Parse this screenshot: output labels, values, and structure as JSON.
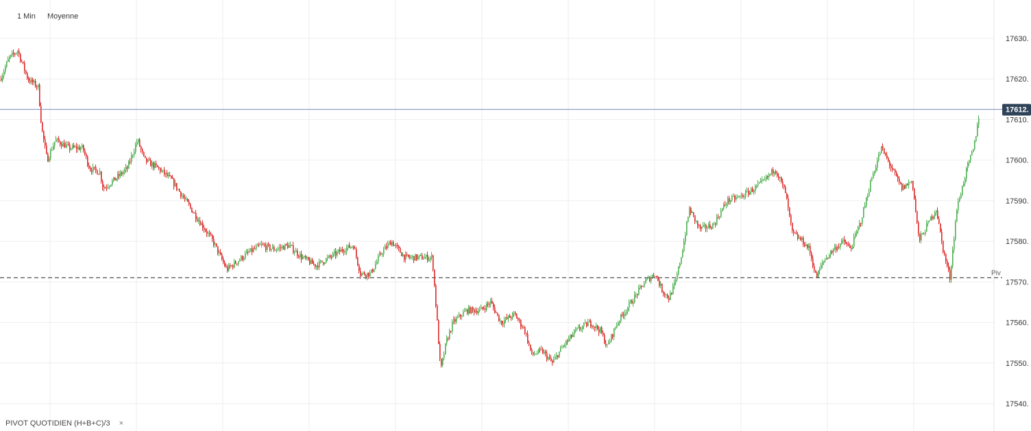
{
  "toolbar": {
    "interval_label": "1 Min",
    "chart_type_label": "Moyenne"
  },
  "indicator": {
    "label": "PIVOT  QUOTIDIEN  (H+B+C)/3",
    "close_glyph": "×"
  },
  "colors": {
    "up": "#4caf50",
    "down": "#e02424",
    "grid": "#eeeeee",
    "axis": "#333333",
    "price_line": "#7b8bb3",
    "price_tag": "#2f4358",
    "pivot_line": "#555555"
  },
  "chart_data": {
    "type": "candlestick",
    "interval": "1 Min",
    "ylim": [
      17535,
      17637
    ],
    "y_ticks": [
      17540,
      17550,
      17560,
      17570,
      17580,
      17590,
      17600,
      17610,
      17620,
      17630
    ],
    "y_tick_labels": [
      "17540.",
      "17550.",
      "17560.",
      "17570.",
      "17580.",
      "17590.",
      "17600.",
      "17610.",
      "17620.",
      "17630."
    ],
    "grid": true,
    "current_price": {
      "value": 17612.5,
      "label": "17612."
    },
    "pivot": {
      "value": 17571.0,
      "label": "Piv"
    },
    "close_path": [
      [
        0,
        17620
      ],
      [
        12,
        17625
      ],
      [
        25,
        17627
      ],
      [
        40,
        17620
      ],
      [
        55,
        17618
      ],
      [
        60,
        17608
      ],
      [
        68,
        17600
      ],
      [
        80,
        17605
      ],
      [
        100,
        17603
      ],
      [
        120,
        17603
      ],
      [
        130,
        17598
      ],
      [
        145,
        17597
      ],
      [
        150,
        17593
      ],
      [
        165,
        17595
      ],
      [
        185,
        17598
      ],
      [
        200,
        17605
      ],
      [
        210,
        17600
      ],
      [
        230,
        17598
      ],
      [
        250,
        17595
      ],
      [
        270,
        17590
      ],
      [
        290,
        17585
      ],
      [
        310,
        17580
      ],
      [
        330,
        17573
      ],
      [
        345,
        17575
      ],
      [
        360,
        17577
      ],
      [
        380,
        17579
      ],
      [
        400,
        17578
      ],
      [
        420,
        17579
      ],
      [
        440,
        17576
      ],
      [
        460,
        17574
      ],
      [
        480,
        17576
      ],
      [
        500,
        17578
      ],
      [
        515,
        17579
      ],
      [
        525,
        17572
      ],
      [
        540,
        17572
      ],
      [
        555,
        17577
      ],
      [
        570,
        17580
      ],
      [
        590,
        17576
      ],
      [
        610,
        17576
      ],
      [
        630,
        17576
      ],
      [
        637,
        17560
      ],
      [
        642,
        17548
      ],
      [
        650,
        17555
      ],
      [
        660,
        17560
      ],
      [
        680,
        17563
      ],
      [
        700,
        17563
      ],
      [
        715,
        17565
      ],
      [
        730,
        17560
      ],
      [
        750,
        17562
      ],
      [
        765,
        17558
      ],
      [
        775,
        17552
      ],
      [
        790,
        17553
      ],
      [
        805,
        17550
      ],
      [
        820,
        17554
      ],
      [
        840,
        17558
      ],
      [
        860,
        17560
      ],
      [
        875,
        17558
      ],
      [
        885,
        17554
      ],
      [
        900,
        17560
      ],
      [
        920,
        17565
      ],
      [
        940,
        17570
      ],
      [
        955,
        17572
      ],
      [
        965,
        17568
      ],
      [
        975,
        17566
      ],
      [
        985,
        17570
      ],
      [
        995,
        17578
      ],
      [
        1005,
        17588
      ],
      [
        1020,
        17583
      ],
      [
        1040,
        17584
      ],
      [
        1060,
        17590
      ],
      [
        1080,
        17591
      ],
      [
        1100,
        17593
      ],
      [
        1115,
        17595
      ],
      [
        1130,
        17598
      ],
      [
        1145,
        17592
      ],
      [
        1155,
        17582
      ],
      [
        1170,
        17580
      ],
      [
        1180,
        17578
      ],
      [
        1190,
        17571
      ],
      [
        1200,
        17575
      ],
      [
        1215,
        17578
      ],
      [
        1230,
        17580
      ],
      [
        1240,
        17578
      ],
      [
        1255,
        17585
      ],
      [
        1270,
        17595
      ],
      [
        1285,
        17603
      ],
      [
        1300,
        17598
      ],
      [
        1315,
        17593
      ],
      [
        1330,
        17595
      ],
      [
        1340,
        17580
      ],
      [
        1355,
        17585
      ],
      [
        1365,
        17588
      ],
      [
        1375,
        17578
      ],
      [
        1385,
        17571
      ],
      [
        1395,
        17588
      ],
      [
        1410,
        17598
      ],
      [
        1420,
        17603
      ],
      [
        1428,
        17612
      ]
    ]
  }
}
